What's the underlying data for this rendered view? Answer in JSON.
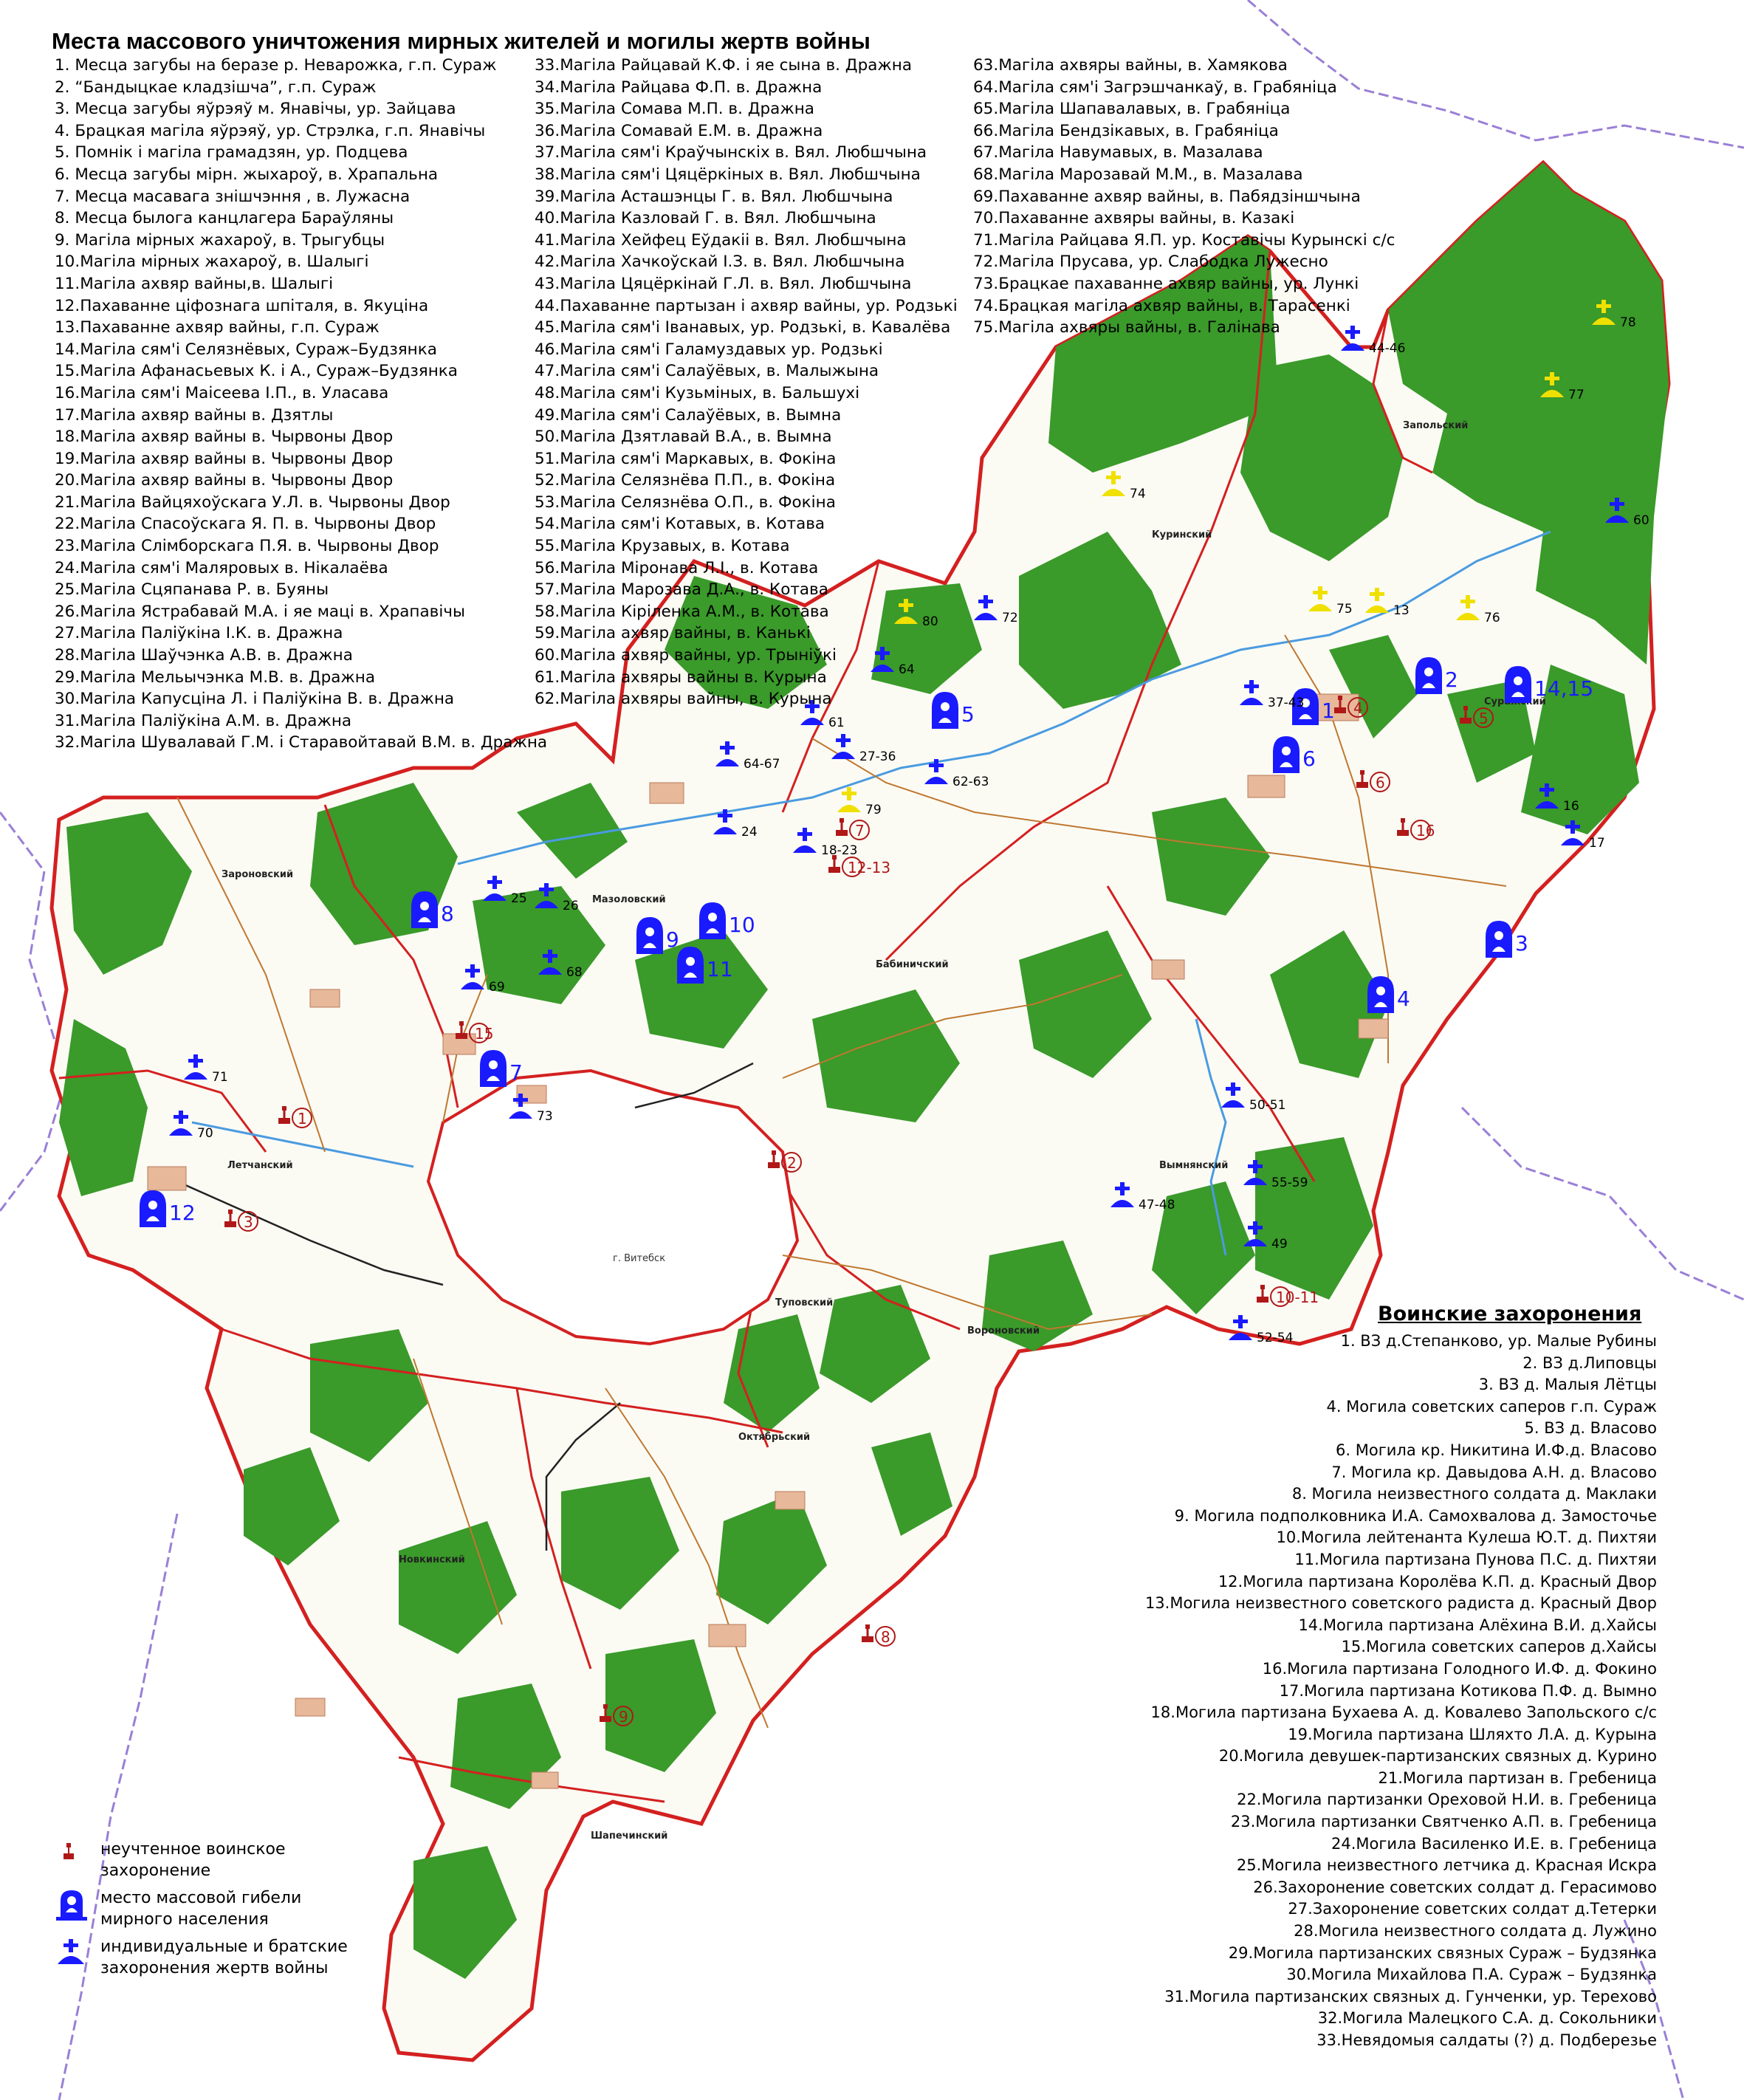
{
  "title": "Места массового уничтожения мирных жителей и могилы жертв войны",
  "civilian_list_col1": [
    "1.  Месца загубы на беразе р. Неварожка, г.п. Сураж",
    "2.  “Бандыцкае кладзішча”, г.п. Сураж",
    "3.  Месца загубы яўрэяў м. Янавічы, ур. Зайцава",
    "4.  Брацкая магіла яўрэяў, ур. Стрэлка, г.п. Янавічы",
    "5.  Помнік і магіла грамадзян, ур. Подцева",
    "6.  Месца загубы мірн. жыхароў, в. Храпальна",
    "7.  Месца масавага знішчэння , в. Лужасна",
    "8.  Месца былога канцлагера Бараўляны",
    "9.  Магіла мірных жахароў, в. Трыгубцы",
    "10.Магіла мірных жахароў, в. Шалыгі",
    "11.Магіла ахвяр вайны,в. Шалыгі",
    "12.Пахаванне цiфознага шпіталя, в. Якуціна",
    "13.Пахаванне ахвяр вайны, г.п. Сураж",
    "14.Магіла сям'і Селязнёвых, Сураж–Будзянка",
    "15.Магіла Афанасьевых К. і А., Сураж–Будзянка",
    "16.Магіла сям'і Маісеева І.П., в. Уласава",
    "17.Магіла ахвяр вайны в. Дзятлы",
    "18.Магіла ахвяр вайны в. Чырвоны Двор",
    "19.Магіла ахвяр вайны в. Чырвоны Двор",
    "20.Магіла ахвяр вайны в. Чырвоны Двор",
    "21.Магіла Вайцяхоўскага У.Л. в. Чырвоны Двор",
    "22.Магіла Спасоўскага Я. П. в. Чырвоны Двор",
    "23.Магіла Слімборскага П.Я. в. Чырвоны Двор",
    "24.Магіла сям'і Маляровых в. Нікалаёва",
    "25.Магіла Сцяпанава Р. в. Буяны",
    "26.Магіла Ястрабавай М.А. і яе маці в. Храпавічы",
    "27.Магіла Палiўкіна І.К. в. Дражна",
    "28.Магіла Шаўчэнка А.В. в. Дражна",
    "29.Магіла Мельычэнка М.В. в. Дражна",
    "30.Магіла Капусціна Л. і Палiўкіна В. в. Дражна",
    "31.Магіла Палiўкіна А.М. в. Дражна",
    "32.Магіла Шувалавай Г.М. і Старавойтавай В.М. в. Дражна"
  ],
  "civilian_list_col2": [
    "33.Магіла Райцавай К.Ф. і яе сына в. Дражна",
    "34.Магіла Райцава Ф.П. в. Дражна",
    "35.Магіла Сомава М.П. в. Дражна",
    "36.Магіла Сомавай Е.М. в. Дражна",
    "37.Магіла сям'і Краўчынскіх в. Вял. Любшчына",
    "38.Магіла сям'і Цяцёркіных в. Вял. Любшчына",
    "39.Магіла Асташэнцы Г. в. Вял. Любшчына",
    "40.Магіла Казловай Г. в. Вял. Любшчына",
    "41.Магіла Хейфец Еўдакіі в. Вял. Любшчына",
    "42.Магіла Хачкоўскай І.З. в. Вял. Любшчына",
    "43.Магіла Цяцёркінай Г.Л. в. Вял. Любшчына",
    "44.Пахаванне партызан і ахвяр вайны, ур. Родзькі",
    "45.Магіла сям'і Іванавых, ур. Родзькі, в. Кавалёва",
    "46.Магіла сям'і Галамуздавых ур. Родзькі",
    "47.Магіла сям'і Салаўёвых, в. Малыжына",
    "48.Магіла сям'і Кузьміных, в. Бальшухі",
    "49.Магіла сям'і Салаўёвых, в. Вымна",
    "50.Магіла Дзятлавай В.А., в. Вымна",
    "51.Магіла сям'і Маркавых, в. Фокіна",
    "52.Магіла Селязнёва П.П., в. Фокіна",
    "53.Магіла Селязнёва О.П., в. Фокіна",
    "54.Магіла сям'і Котавых, в. Котава",
    "55.Магіла Крузавых, в. Котава",
    "56.Магіла Міронава Л.І., в. Котава",
    "57.Магіла Марозава Д.А., в. Котава",
    "58.Магіла Кіріленка А.М., в. Котава",
    "59.Магіла ахвяр вайны, в. Канькі",
    "60.Магіла ахвяр вайны, ур. Трынiўкі",
    "61.Магіла ахвяры вайны в. Курына",
    "62.Магіла ахвяры вайны, в. Курына"
  ],
  "civilian_list_col3": [
    "63.Магіла ахвяры вайны, в. Хамякова",
    "64.Магіла сям'і Загрэшчанкаў, в. Грабяніца",
    "65.Магіла Шапавалавых, в. Грабяніца",
    "66.Магіла Бендзікавых, в. Грабяніца",
    "67.Магіла Навумавых, в. Мазалава",
    "68.Магіла Марозавай М.М., в. Мазалава",
    "69.Пахаванне ахвяр вайны, в. Пабядзіншчына",
    "70.Пахаванне ахвяры вайны, в. Казакі",
    "71.Магіла Райцава Я.П. ур. Коставічы Курынскі с/с",
    "72.Магіла Прусава, ур. Слабодка Лужесно",
    "73.Брацкае пахаванне ахвяр вайны, ур. Лункі",
    "74.Брацкая магіла ахвяр вайны, в. Тарасенкі",
    "75.Магіла ахвяры вайны, в. Галінава"
  ],
  "military_title": "Воинские захоронения",
  "military_list": [
    "1.  ВЗ д.Степанково, ур. Малые Рубины",
    "2.  ВЗ д.Липовцы",
    "3.  ВЗ д. Малыя Лётцы",
    "4.  Могила советских саперов г.п. Сураж",
    "5.  ВЗ д. Власово",
    "6.  Могила кр. Никитина И.Ф.д. Власово",
    "7.  Могила кр. Давыдова А.Н. д. Власово",
    "8.  Могила неизвестного солдата д. Маклаки",
    "9.  Могила подполковника И.А. Самохвалова д. Замосточье",
    "10.Могила лейтенанта Кулеша Ю.Т. д. Пихтяи",
    "11.Могила партизана Пунова П.С. д. Пихтяи",
    "12.Могила партизана Королёва К.П. д. Красный Двор",
    "13.Могила неизвестного советского радиста д. Красный Двор",
    "14.Могила партизана Алёхина В.И. д.Хайсы",
    "15.Могила советских саперов д.Хайсы",
    "16.Могила партизана Голодного И.Ф. д. Фокино",
    "17.Могила партизана Котикова П.Ф. д. Вымно",
    "18.Могила партизана Бухаева А. д. Ковалево Запольского с/с",
    "19.Могила партизана Шляхто Л.А. д. Курына",
    "20.Могила девушек-партизанских связных д. Курино",
    "21.Могила партизан в. Гребеница",
    "22.Могила партизанки Ореховой Н.И. в. Гребеница",
    "23.Могила партизанки Святченко А.П. в. Гребеница",
    "24.Могила Василенко И.Е. в. Гребеница",
    "25.Могила неизвестного летчика д. Красная Искра",
    "26.Захоронение советских солдат д. Герасимово",
    "27.Захоронение советских солдат д.Тетерки",
    "28.Могила неизвестного солдата д. Лужино",
    "29.Могила партизанских связных  Сураж – Будзянка",
    "30.Могила Михайлова П.А. Сураж – Будзянка",
    "31.Могила партизанских связных  д. Гунченки, ур. Терехово",
    "32.Могила Малецкого С.А. д. Сокольники",
    "33.Невядомыя салдаты (?) д. Подберезье"
  ],
  "legend": {
    "unregistered": "неучтенное воинское захоронение",
    "mass_death": "место массовой гибели мирного населения",
    "graves": "индивидуальные и братские захоронения жертв войны"
  },
  "region_names": [
    "Зароновский",
    "Летчанский",
    "Мазоловский",
    "Бабиничский",
    "Куринский",
    "Запольский",
    "Суражский",
    "Вымнянский",
    "Туповский",
    "Вороновский",
    "Октябрьский",
    "Новкинский",
    "Шапечинский"
  ],
  "city_label": "г. Витебск",
  "markers_civil": [
    "1",
    "2",
    "3",
    "4",
    "5",
    "6",
    "7",
    "8",
    "9",
    "10",
    "11",
    "12",
    "13",
    "14,15",
    "16",
    "17",
    "18-23",
    "24",
    "25",
    "26",
    "27-36",
    "37-43",
    "44-46",
    "47-48",
    "49",
    "50-51",
    "52-54",
    "55-59",
    "60",
    "61",
    "62-63",
    "64",
    "64-67",
    "68",
    "69",
    "70",
    "71",
    "72",
    "73",
    "74",
    "75",
    "76",
    "77",
    "78",
    "79",
    "80"
  ],
  "markers_military": [
    "1",
    "2",
    "3",
    "4",
    "5",
    "6",
    "7",
    "8",
    "9",
    "10-11",
    "12-13",
    "15",
    "16"
  ],
  "colors": {
    "forest": "#3a9a2a",
    "border": "#d42020",
    "civil": "#1a1aff",
    "military": "#b01818",
    "yellow": "#f0e000"
  }
}
